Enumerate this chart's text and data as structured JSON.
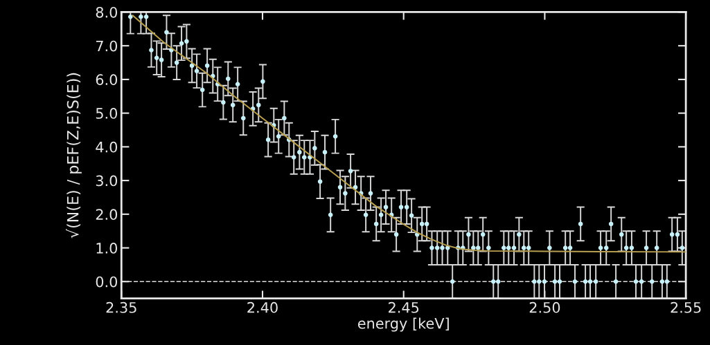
{
  "chart_data": {
    "type": "scatter",
    "xlabel": "energy [keV]",
    "ylabel": "√(N(E) / pEF(Z,E)S(E))",
    "xlim": [
      2.35,
      2.55
    ],
    "xticks": [
      {
        "value": 2.35,
        "label": "2.35"
      },
      {
        "value": 2.4,
        "label": "2.40"
      },
      {
        "value": 2.45,
        "label": "2.45"
      },
      {
        "value": 2.5,
        "label": "2.50"
      },
      {
        "value": 2.55,
        "label": "2.55"
      }
    ],
    "ylim": [
      -0.5,
      8.0
    ],
    "yticks": [
      {
        "value": 0,
        "label": "0.0"
      },
      {
        "value": 1,
        "label": "1.0"
      },
      {
        "value": 2,
        "label": "2.0"
      },
      {
        "value": 3,
        "label": "3.0"
      },
      {
        "value": 4,
        "label": "4.0"
      },
      {
        "value": 5,
        "label": "5.0"
      },
      {
        "value": 6,
        "label": "6.0"
      },
      {
        "value": 7,
        "label": "7.0"
      },
      {
        "value": 8,
        "label": "8.0"
      }
    ],
    "legend": false,
    "ref_lines": [
      {
        "axis": "y",
        "value": 0,
        "color": "#e0e0e0",
        "line_style": "dashed"
      }
    ],
    "series": [
      {
        "color": "#c8f0f8",
        "marker": "circle",
        "x": [
          2.3532,
          2.3569,
          2.3588,
          2.3606,
          2.3625,
          2.3642,
          2.366,
          2.3677,
          2.3696,
          2.3713,
          2.3731,
          2.375,
          2.3767,
          2.3787,
          2.3804,
          2.3824,
          2.3841,
          2.3861,
          2.3878,
          2.3895,
          2.3912,
          2.3932,
          2.3966,
          2.3986,
          2.4001,
          2.402,
          2.404,
          2.4057,
          2.4077,
          2.4094,
          2.4111,
          2.4131,
          2.4148,
          2.4168,
          2.4185,
          2.4204,
          2.4221,
          2.4241,
          2.4258,
          2.4275,
          2.4293,
          2.4312,
          2.4329,
          2.4349,
          2.4366,
          2.4383,
          2.4403,
          2.442,
          2.4437,
          2.4457,
          2.4474,
          2.4491,
          2.4511,
          2.4528,
          2.4548,
          2.4565,
          2.4582,
          2.46,
          2.4619,
          2.4637,
          2.4656,
          2.4673,
          2.4693,
          2.471,
          2.473,
          2.4747,
          2.4764,
          2.4781,
          2.4801,
          2.4818,
          2.4835,
          2.4855,
          2.4872,
          2.4891,
          2.4909,
          2.4926,
          2.4943,
          2.4963,
          2.498,
          2.4999,
          2.5017,
          2.5036,
          2.5053,
          2.5073,
          2.509,
          2.5107,
          2.5127,
          2.5144,
          2.5161,
          2.5181,
          2.5198,
          2.5218,
          2.5235,
          2.5252,
          2.5272,
          2.5289,
          2.5308,
          2.5323,
          2.5343,
          2.536,
          2.538,
          2.5397,
          2.5416,
          2.5433,
          2.5451,
          2.547,
          2.5487
        ],
        "values": [
          7.86,
          7.86,
          7.86,
          6.87,
          6.64,
          6.58,
          7.4,
          6.87,
          6.5,
          7.07,
          7.13,
          6.41,
          6.25,
          5.69,
          6.41,
          6.1,
          5.86,
          5.32,
          6.02,
          5.24,
          5.86,
          4.85,
          5.13,
          5.24,
          5.94,
          4.21,
          4.64,
          4.31,
          4.85,
          4.21,
          3.69,
          3.84,
          3.69,
          3.69,
          3.96,
          2.97,
          3.84,
          1.98,
          4.31,
          2.8,
          2.62,
          3.28,
          2.8,
          2.62,
          1.98,
          2.62,
          1.71,
          1.98,
          2.21,
          1.98,
          1.4,
          2.21,
          2.21,
          1.96,
          1.4,
          1.71,
          1.71,
          1.0,
          1.0,
          1.0,
          1.0,
          0,
          1.0,
          1.0,
          1.4,
          1.0,
          1.0,
          1.4,
          1.0,
          0,
          0,
          1.0,
          1.0,
          1.0,
          1.4,
          1.0,
          1.0,
          0,
          0,
          0,
          1.0,
          0,
          0,
          1.0,
          1.0,
          0,
          1.71,
          0,
          0,
          0,
          1.0,
          1.0,
          1.71,
          0,
          1.4,
          1.0,
          1.0,
          0,
          0,
          1.0,
          0,
          1.0,
          0,
          0,
          1.4,
          1.4,
          1.0
        ],
        "errors": [
          0.5,
          0.5,
          0.5,
          0.5,
          0.5,
          0.5,
          0.5,
          0.5,
          0.5,
          0.5,
          0.5,
          0.5,
          0.5,
          0.5,
          0.5,
          0.5,
          0.5,
          0.5,
          0.5,
          0.5,
          0.5,
          0.5,
          0.5,
          0.5,
          0.5,
          0.5,
          0.5,
          0.5,
          0.5,
          0.5,
          0.5,
          0.5,
          0.5,
          0.5,
          0.5,
          0.5,
          0.5,
          0.5,
          0.5,
          0.5,
          0.5,
          0.5,
          0.5,
          0.5,
          0.5,
          0.5,
          0.5,
          0.5,
          0.5,
          0.5,
          0.5,
          0.5,
          0.5,
          0.5,
          0.5,
          0.5,
          0.5,
          0.5,
          0.5,
          0.5,
          0.5,
          0.5,
          0.5,
          0.5,
          0.5,
          0.5,
          0.5,
          0.5,
          0.5,
          0.5,
          0.5,
          0.5,
          0.5,
          0.5,
          0.5,
          0.5,
          0.5,
          0.5,
          0.5,
          0.5,
          0.5,
          0.5,
          0.5,
          0.5,
          0.5,
          0.5,
          0.5,
          0.5,
          0.5,
          0.5,
          0.5,
          0.5,
          0.5,
          0.5,
          0.5,
          0.5,
          0.5,
          0.5,
          0.5,
          0.5,
          0.5,
          0.5,
          0.5,
          0.5,
          0.5,
          0.5,
          0.5
        ]
      },
      {
        "type": "line",
        "color": "#b8a050",
        "marker": "none",
        "line_style": "solid",
        "x": [
          2.354,
          2.365,
          2.38,
          2.39,
          2.4,
          2.41,
          2.42,
          2.43,
          2.44,
          2.45,
          2.455,
          2.46,
          2.465,
          2.47,
          2.475,
          2.48,
          2.5,
          2.52,
          2.55
        ],
        "values": [
          7.9,
          7.1,
          6.2,
          5.5,
          4.85,
          4.2,
          3.55,
          2.9,
          2.25,
          1.7,
          1.45,
          1.25,
          1.08,
          0.97,
          0.93,
          0.91,
          0.9,
          0.89,
          0.88
        ]
      }
    ]
  }
}
